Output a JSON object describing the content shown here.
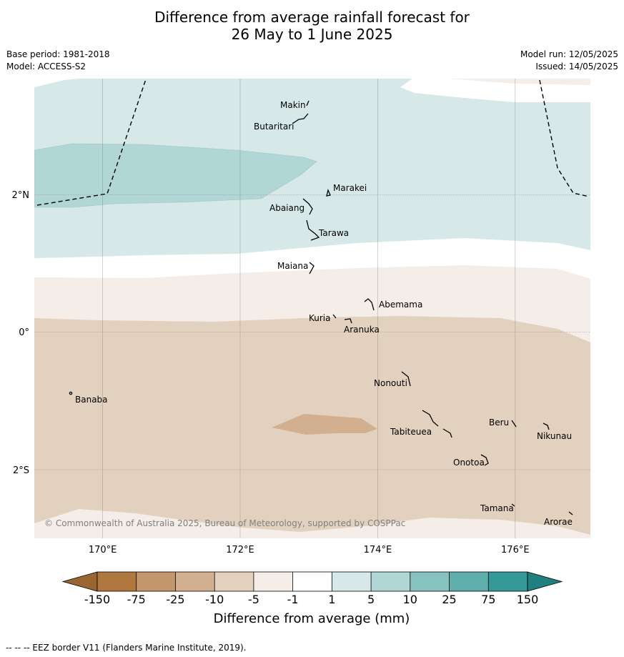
{
  "header": {
    "title_line1": "Difference from average rainfall forecast for",
    "title_line2": "26 May to 1 June 2025",
    "base_period": "Base period: 1981-2018",
    "model": "Model: ACCESS-S2",
    "model_run": "Model run: 12/05/2025",
    "issued": "Issued: 14/05/2025"
  },
  "map": {
    "lat_labels": [
      "2°N",
      "0°",
      "2°S"
    ],
    "lon_labels": [
      "170°E",
      "172°E",
      "174°E",
      "176°E"
    ],
    "copyright": "© Commonwealth of Australia 2025, Bureau of Meteorology, supported by COSPPac",
    "places": [
      "Makin",
      "Butaritari",
      "Marakei",
      "Abaiang",
      "Tarawa",
      "Maiana",
      "Abemama",
      "Kuria",
      "Aranuka",
      "Banaba",
      "Nonouti",
      "Beru",
      "Tabiteuea",
      "Nikunau",
      "Onotoa",
      "Tamana",
      "Arorae"
    ]
  },
  "colorbar": {
    "title": "Difference from average (mm)",
    "ticks": [
      "-150",
      "-75",
      "-25",
      "-10",
      "-5",
      "-1",
      "1",
      "5",
      "10",
      "25",
      "75",
      "150"
    ],
    "colors": {
      "below_min": "#9a6530",
      "bins": [
        "#b0773f",
        "#c3976c",
        "#d2b08f",
        "#e3d1c0",
        "#f4ede8",
        "#ffffff",
        "#d6e9e8",
        "#b0d6d5",
        "#85c2c0",
        "#5eaeac",
        "#35999a"
      ],
      "above_max": "#207f7f"
    }
  },
  "footer": {
    "eez_note": "--  --  -- EEZ border V11 (Flanders Marine Institute, 2019)."
  }
}
